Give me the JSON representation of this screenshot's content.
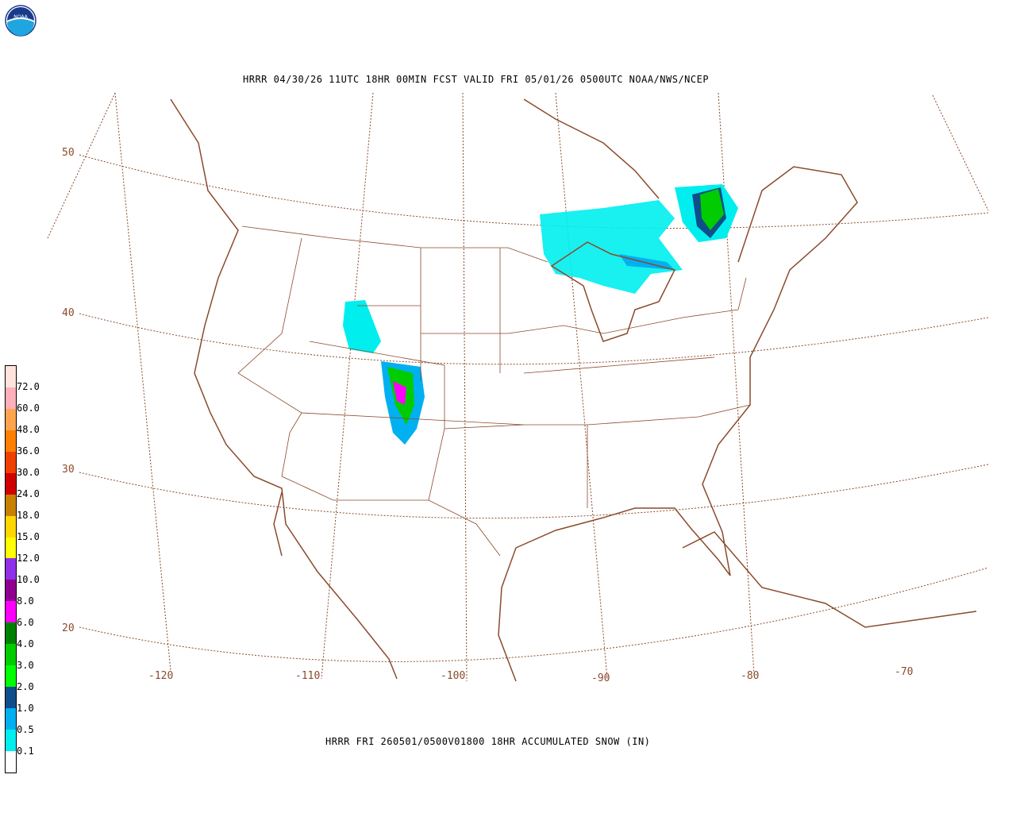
{
  "logo": {
    "text": "NOAA",
    "icon": "noaa-logo"
  },
  "header": {
    "title": "HRRR 04/30/26 11UTC 18HR 00MIN FCST VALID FRI 05/01/26 0500UTC NOAA/NWS/NCEP"
  },
  "footer": {
    "caption": "HRRR FRI 260501/0500V01800 18HR ACCUMULATED SNOW (IN)"
  },
  "map": {
    "projection": "lambert-conformal",
    "line_color": "#8B4A2B",
    "lat_labels": [
      "50",
      "40",
      "30",
      "20"
    ],
    "lon_labels": [
      "-120",
      "-110",
      "-100",
      "-90",
      "-80",
      "-70"
    ]
  },
  "colorbar": {
    "colors": [
      "#FFE4DC",
      "#FFB0BA",
      "#FFA550",
      "#FF8000",
      "#F04000",
      "#D00000",
      "#C88000",
      "#FFD700",
      "#FFFF00",
      "#9030E8",
      "#900090",
      "#FF00FF",
      "#008000",
      "#00CC00",
      "#00FF00",
      "#104E8B",
      "#00B0F0",
      "#00EEEE",
      "#FFFFFF"
    ],
    "labels": [
      "72.0",
      "60.0",
      "48.0",
      "36.0",
      "30.0",
      "24.0",
      "18.0",
      "15.0",
      "12.0",
      "10.0",
      "8.0",
      "6.0",
      "4.0",
      "3.0",
      "2.0",
      "1.0",
      "0.5",
      "0.1"
    ]
  }
}
